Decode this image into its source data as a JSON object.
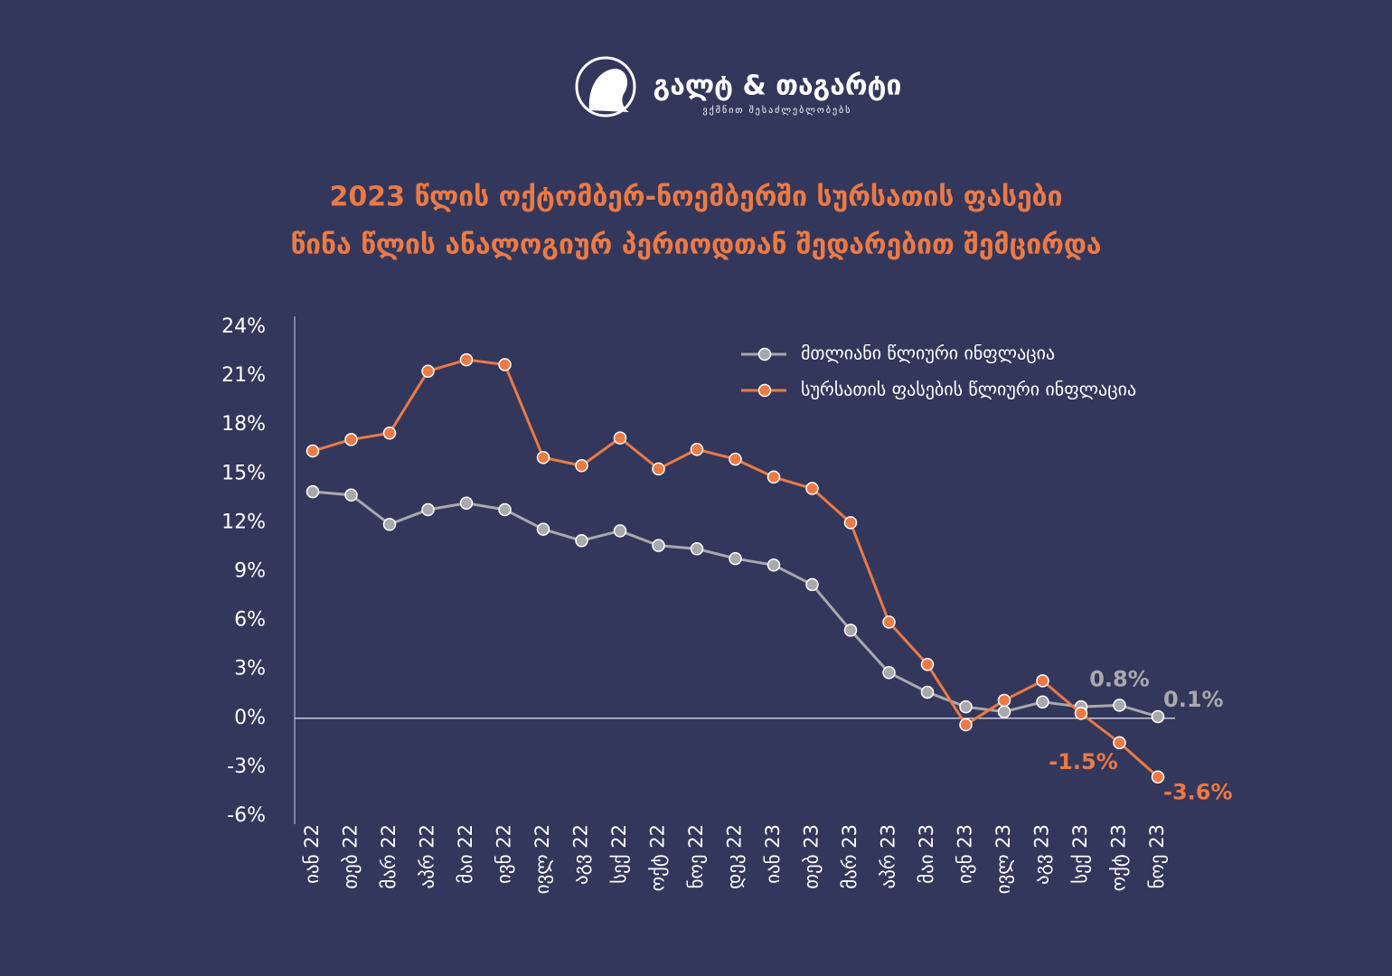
{
  "logo": {
    "name": "გალტ & თაგარტი",
    "tagline": "ვქმნით შესაძლებლობებს"
  },
  "chart_data": {
    "type": "line",
    "title": [
      "2023 წლის ოქტომბერ-ნოემბერში სურსათის ფასები",
      "წინა წლის ანალოგიურ პერიოდთან შედარებით შემცირდა"
    ],
    "categories": [
      "იან 22",
      "თებ 22",
      "მარ 22",
      "აპრ 22",
      "მაი 22",
      "ივნ 22",
      "ივლ 22",
      "აგვ 22",
      "სექ 22",
      "ოქტ 22",
      "ნოე 22",
      "დეკ 22",
      "იან 23",
      "თებ 23",
      "მარ 23",
      "აპრ 23",
      "მაი 23",
      "ივნ 23",
      "ივლ 23",
      "აგვ 23",
      "სექ 23",
      "ოქტ 23",
      "ნოე 23"
    ],
    "series": [
      {
        "name": "მთლიანი წლიური ინფლაცია",
        "color": "#a9a9ad",
        "values": [
          13.9,
          13.7,
          11.9,
          12.8,
          13.2,
          12.8,
          11.6,
          10.9,
          11.5,
          10.6,
          10.4,
          9.8,
          9.4,
          8.2,
          5.4,
          2.8,
          1.6,
          0.7,
          0.4,
          1.0,
          0.7,
          0.8,
          0.1
        ],
        "value_labels": [
          null,
          null,
          null,
          null,
          null,
          null,
          null,
          null,
          null,
          null,
          null,
          null,
          null,
          null,
          null,
          null,
          null,
          null,
          null,
          null,
          null,
          "0.8%",
          "0.1%"
        ]
      },
      {
        "name": "სურსათის ფასების წლიური ინფლაცია",
        "color": "#ec7a45",
        "values": [
          16.4,
          17.1,
          17.5,
          21.3,
          22.0,
          21.7,
          16.0,
          15.5,
          17.2,
          15.3,
          16.5,
          15.9,
          14.8,
          14.1,
          12.0,
          5.9,
          3.3,
          -0.4,
          1.1,
          2.3,
          0.3,
          -1.5,
          -3.6
        ],
        "value_labels": [
          null,
          null,
          null,
          null,
          null,
          null,
          null,
          null,
          null,
          null,
          null,
          null,
          null,
          null,
          null,
          null,
          null,
          null,
          null,
          null,
          null,
          "-1.5%",
          "-3.6%"
        ]
      }
    ],
    "ylim": [
      -6,
      24
    ],
    "yticks": [
      {
        "value": 24,
        "label": "24%"
      },
      {
        "value": 21,
        "label": "21%"
      },
      {
        "value": 18,
        "label": "18%"
      },
      {
        "value": 15,
        "label": "15%"
      },
      {
        "value": 12,
        "label": "12%"
      },
      {
        "value": 9,
        "label": "9%"
      },
      {
        "value": 6,
        "label": "6%"
      },
      {
        "value": 3,
        "label": "3%"
      },
      {
        "value": 0,
        "label": "0%"
      },
      {
        "value": -3,
        "label": "-3%"
      },
      {
        "value": -6,
        "label": "-6%"
      }
    ],
    "grid": false,
    "legend": "top-right"
  }
}
